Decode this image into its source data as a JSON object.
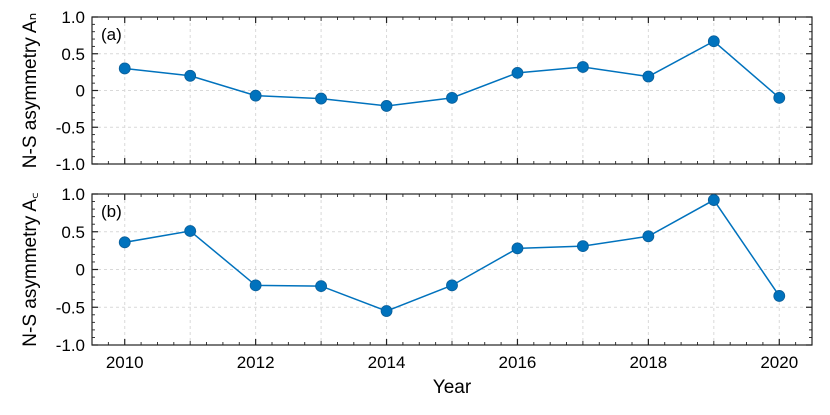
{
  "chart_data": {
    "type": "line",
    "xlabel": "Year",
    "x_ticks": [
      2010,
      2012,
      2014,
      2016,
      2018,
      2020
    ],
    "xlim": [
      2009.5,
      2020.5
    ],
    "color": "#0072BD",
    "grid": true,
    "panels": [
      {
        "tag": "(a)",
        "ylabel": "N-S asymmetry Aₙ",
        "ylim": [
          -1.0,
          1.0
        ],
        "y_ticks": [
          1.0,
          0.5,
          0,
          -0.5,
          -1.0
        ],
        "y_tick_labels": [
          "1.0",
          "0.5",
          "0",
          "-0.5",
          "-1.0"
        ],
        "x": [
          2010,
          2011,
          2012,
          2013,
          2014,
          2015,
          2016,
          2017,
          2018,
          2019,
          2020
        ],
        "values": [
          0.3,
          0.2,
          -0.07,
          -0.11,
          -0.21,
          -0.1,
          0.24,
          0.32,
          0.19,
          0.67,
          -0.1
        ]
      },
      {
        "tag": "(b)",
        "ylabel": "N-S asymmetry A꜀",
        "ylim": [
          -1.0,
          1.0
        ],
        "y_ticks": [
          1.0,
          0.5,
          0,
          -0.5,
          -1.0
        ],
        "y_tick_labels": [
          "1.0",
          "0.5",
          "0",
          "-0.5",
          "-1.0"
        ],
        "x": [
          2010,
          2011,
          2012,
          2013,
          2014,
          2015,
          2016,
          2017,
          2018,
          2019,
          2020
        ],
        "values": [
          0.36,
          0.51,
          -0.21,
          -0.22,
          -0.55,
          -0.21,
          0.28,
          0.31,
          0.44,
          0.92,
          -0.35
        ]
      }
    ]
  }
}
